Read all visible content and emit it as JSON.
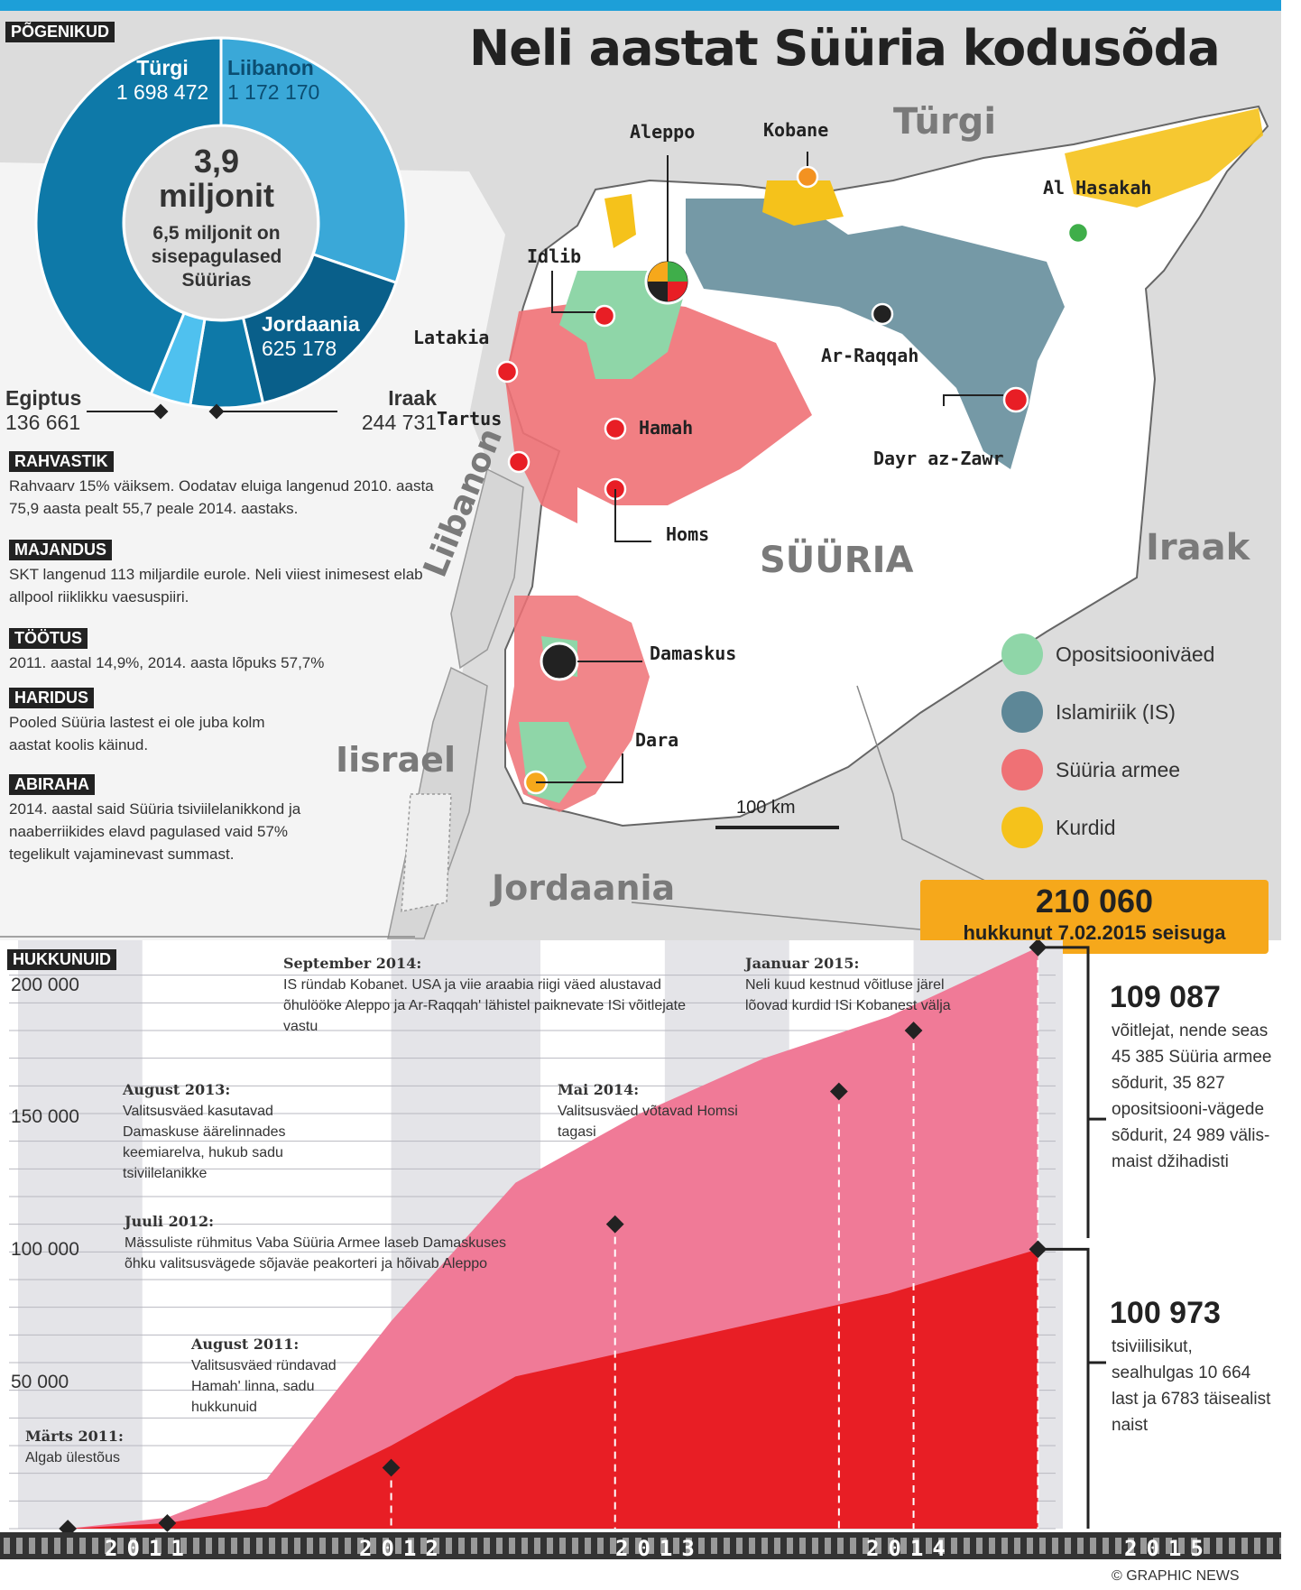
{
  "title": "Neli aastat Süüria kodusõda",
  "refugees": {
    "tag": "PÕGENIKUD",
    "center_value": "3,9",
    "center_unit": "miljonit",
    "center_note": "6,5 miljonit on sisepagulased Süürias",
    "segments": [
      {
        "country": "Türgi",
        "count": "1 698 472",
        "value": 1698472,
        "color": "#0e79a8"
      },
      {
        "country": "Liibanon",
        "count": "1 172 170",
        "value": 1172170,
        "color": "#3aa8d8"
      },
      {
        "country": "Jordaania",
        "count": "625 178",
        "value": 625178,
        "color": "#095f8a"
      },
      {
        "country": "Iraak",
        "count": "244 731",
        "value": 244731,
        "color": "#0e79a8"
      },
      {
        "country": "Egiptus",
        "count": "136 661",
        "value": 136661,
        "color": "#4fc1ef"
      }
    ]
  },
  "facts": [
    {
      "tag": "RAHVASTIK",
      "text": "Rahvaarv 15% väiksem. Oodatav eluiga langenud 2010. aasta 75,9 aasta pealt 55,7 peale 2014. aastaks."
    },
    {
      "tag": "MAJANDUS",
      "text": "SKT langenud 113 miljardile eurole. Neli viiest inimesest elab allpool riiklikku vaesuspiiri."
    },
    {
      "tag": "TÖÖTUS",
      "text": "2011. aastal 14,9%, 2014. aasta lõpuks 57,7%"
    },
    {
      "tag": "HARIDUS",
      "text": "Pooled Süüria lastest ei ole juba kolm aastat koolis käinud."
    },
    {
      "tag": "ABIRAHA",
      "text": "2014. aastal said Süüria tsiviilelanikkond ja naaberriikides elavd pagulased vaid 57% tegelikult vajaminevast summast."
    }
  ],
  "map": {
    "countries": {
      "turkey": "Türgi",
      "syria": "SÜÜRIA",
      "iraq": "Iraak",
      "lebanon": "Liibanon",
      "israel": "Iisrael",
      "jordan": "Jordaania"
    },
    "cities": {
      "aleppo": "Aleppo",
      "kobane": "Kobane",
      "hasakah": "Al Hasakah",
      "idlib": "Idlib",
      "latakia": "Latakia",
      "tartus": "Tartus",
      "hamah": "Hamah",
      "raqqah": "Ar-Raqqah",
      "zawr": "Dayr az-Zawr",
      "homs": "Homs",
      "damascus": "Damaskus",
      "dara": "Dara"
    },
    "scale": "100 km",
    "legend": [
      {
        "label": "Opositsiooniväed",
        "color": "#8fd6a8"
      },
      {
        "label": "Islamiriik (IS)",
        "color": "#5d8797"
      },
      {
        "label": "Süüria armee",
        "color": "#ef7175"
      },
      {
        "label": "Kurdid",
        "color": "#f5c21b"
      }
    ]
  },
  "total": {
    "value": "210 060",
    "subtitle": "hukkunut  7.02.2015 seisuga"
  },
  "deaths": {
    "tag": "HUKKUNUID",
    "fighters": {
      "value": "109 087",
      "desc": "võitlejat, nende seas 45 385 Süüria armee sõdurit, 35 827 opositsiooni-vägede sõdurit, 24 989 välis-maist džihadisti"
    },
    "civilians": {
      "value": "100 973",
      "desc": "tsiviilisikut, sealhulgas 10 664 last ja 6783 täisealist naist"
    },
    "annotations": [
      {
        "head": "Märts 2011:",
        "text": "Algab ülestõus"
      },
      {
        "head": "August 2011:",
        "text": "Valitsusväed ründavad Hamah' linna, sadu hukkunuid"
      },
      {
        "head": "Juuli 2012:",
        "text": "Mässuliste rühmitus Vaba Süüria Armee laseb Damaskuses õhku valitsusvägede sõjaväe peakorteri ja hõivab Aleppo"
      },
      {
        "head": "August 2013:",
        "text": "Valitsusväed kasutavad Damaskuse äärelinnades keemiarelva, hukub sadu tsiviilelanikke"
      },
      {
        "head": "Mai 2014:",
        "text": "Valitsusväed võtavad Homsi tagasi"
      },
      {
        "head": "September 2014:",
        "text": "IS ründab Kobanet. USA ja viie araabia riigi väed alustavad õhulööke Aleppo ja Ar-Raqqah' lähistel paiknevate ISi võitlejate vastu"
      },
      {
        "head": "Jaanuar 2015:",
        "text": "Neli kuud kestnud võitluse järel lõovad kurdid ISi Kobanest välja"
      }
    ],
    "credit": "© GRAPHIC NEWS"
  },
  "chart_data": {
    "type": "area",
    "ylim": [
      0,
      210000
    ],
    "yticks": [
      "200 000",
      "150 000",
      "100 000",
      "50 000"
    ],
    "ytick_values": [
      200000,
      150000,
      100000,
      50000
    ],
    "x_labels": [
      "2011",
      "2012",
      "2013",
      "2014",
      "2015"
    ],
    "x": [
      2011.2,
      2011.6,
      2012.0,
      2012.5,
      2013.0,
      2013.5,
      2014.0,
      2014.5,
      2015.1
    ],
    "series": [
      {
        "values": [
          0,
          2000,
          10000,
          45000,
          70000,
          85000,
          95000,
          100000,
          109087
        ],
        "color": "#f07a97"
      },
      {
        "values": [
          0,
          2000,
          8000,
          30000,
          55000,
          65000,
          75000,
          85000,
          100973
        ],
        "color": "#e81e25"
      }
    ],
    "markers": [
      {
        "x": 2011.2,
        "y": 0
      },
      {
        "x": 2011.6,
        "y": 2000
      },
      {
        "x": 2012.5,
        "y": 22000
      },
      {
        "x": 2013.4,
        "y": 110000
      },
      {
        "x": 2014.3,
        "y": 158000
      },
      {
        "x": 2014.6,
        "y": 180000
      },
      {
        "x": 2015.1,
        "y": 210060
      },
      {
        "x": 2015.1,
        "y": 100973
      }
    ]
  }
}
